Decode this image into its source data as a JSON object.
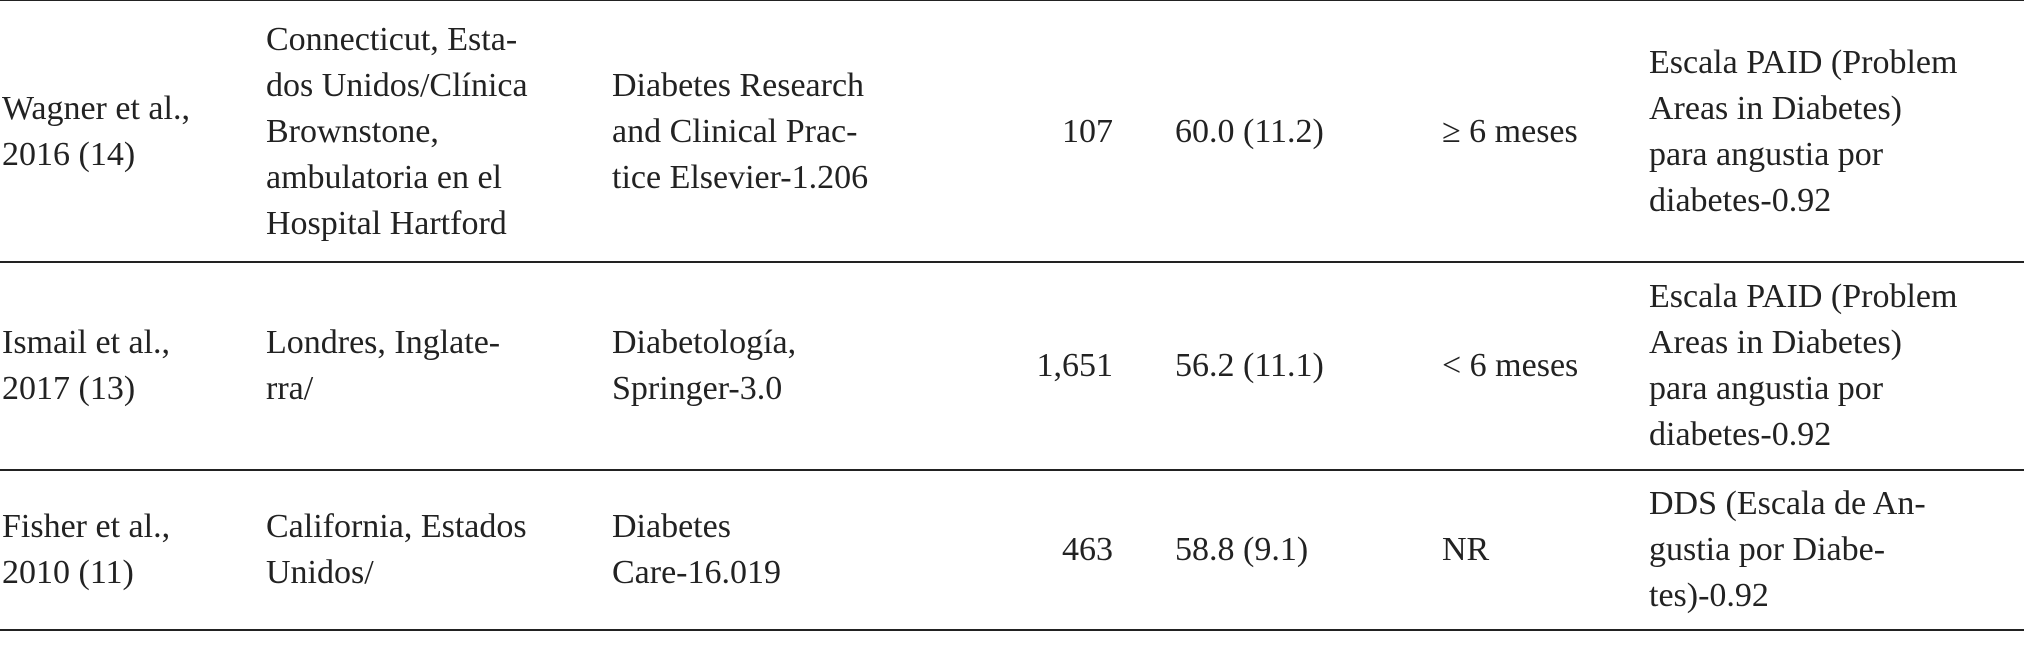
{
  "table": {
    "rows": [
      [
        [
          "Wagner et al.,",
          "2016 (14)"
        ],
        [
          "Connecticut, Esta-",
          "dos Unidos/Clínica",
          "Brownstone,",
          "ambulatoria en el",
          "Hospital Hartford"
        ],
        [
          "Diabetes Research",
          "and Clinical Prac-",
          "tice Elsevier-1.206"
        ],
        [
          "107"
        ],
        [
          "60.0 (11.2)"
        ],
        [
          "≥ 6 meses"
        ],
        [
          "Escala PAID (Problem",
          "Areas in Diabetes)",
          "para angustia por",
          "diabetes-0.92"
        ]
      ],
      [
        [
          "Ismail et al.,",
          "2017 (13)"
        ],
        [
          "Londres, Inglate-",
          "rra/"
        ],
        [
          "Diabetología,",
          "Springer-3.0"
        ],
        [
          "1,651"
        ],
        [
          "56.2 (11.1)"
        ],
        [
          "< 6 meses"
        ],
        [
          "Escala PAID (Problem",
          "Areas in Diabetes)",
          "para angustia por",
          "diabetes-0.92"
        ]
      ],
      [
        [
          "Fisher et al.,",
          "2010 (11)"
        ],
        [
          "California, Estados",
          "Unidos/"
        ],
        [
          "Diabetes",
          "Care-16.019"
        ],
        [
          "463"
        ],
        [
          "58.8 (9.1)"
        ],
        [
          "NR"
        ],
        [
          "DDS (Escala de An-",
          "gustia por Diabe-",
          "tes)-0.92"
        ]
      ]
    ]
  }
}
